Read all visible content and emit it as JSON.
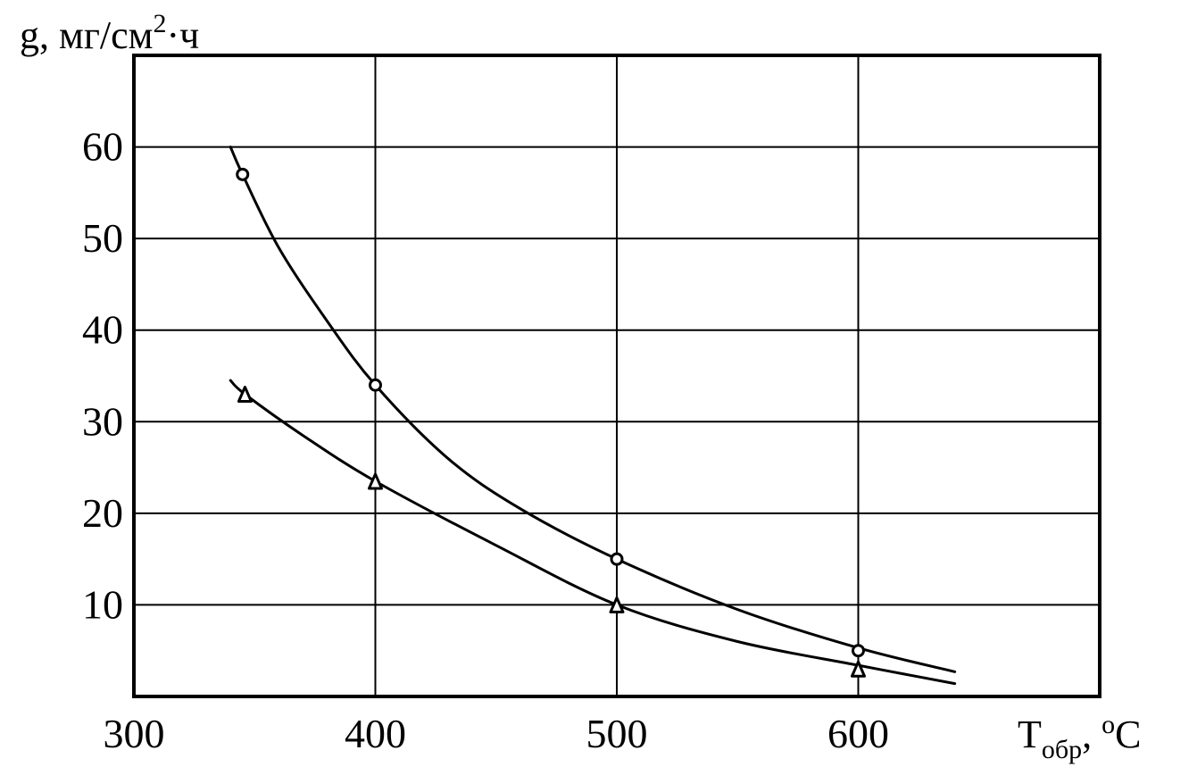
{
  "chart_data": {
    "type": "line",
    "title": "",
    "ylabel": {
      "prefix": "g, мг/см",
      "sup": "2",
      "suffix": "·ч"
    },
    "xlabel": {
      "main": "T",
      "sub": "обр",
      "sep": ", ",
      "sup": "o",
      "unit": "C"
    },
    "xlim": [
      300,
      700
    ],
    "ylim": [
      0,
      70
    ],
    "x_ticks": [
      300,
      400,
      500,
      600
    ],
    "y_ticks": [
      10,
      20,
      30,
      40,
      50,
      60
    ],
    "grid": true,
    "series": [
      {
        "marker": "circle",
        "points": [
          [
            345,
            57
          ],
          [
            400,
            34
          ],
          [
            500,
            15
          ],
          [
            600,
            5
          ]
        ],
        "curve": [
          [
            340,
            60
          ],
          [
            345,
            57
          ],
          [
            360,
            49
          ],
          [
            380,
            41
          ],
          [
            400,
            34
          ],
          [
            430,
            26
          ],
          [
            460,
            20.5
          ],
          [
            500,
            15
          ],
          [
            550,
            9.5
          ],
          [
            600,
            5.3
          ],
          [
            640,
            2.7
          ]
        ]
      },
      {
        "marker": "triangle",
        "points": [
          [
            346,
            33
          ],
          [
            400,
            23.5
          ],
          [
            500,
            10
          ],
          [
            600,
            3
          ]
        ],
        "curve": [
          [
            340,
            34.5
          ],
          [
            346,
            33
          ],
          [
            370,
            28.5
          ],
          [
            400,
            23.5
          ],
          [
            450,
            16.5
          ],
          [
            500,
            10
          ],
          [
            550,
            6
          ],
          [
            600,
            3.4
          ],
          [
            640,
            1.4
          ]
        ]
      }
    ]
  }
}
